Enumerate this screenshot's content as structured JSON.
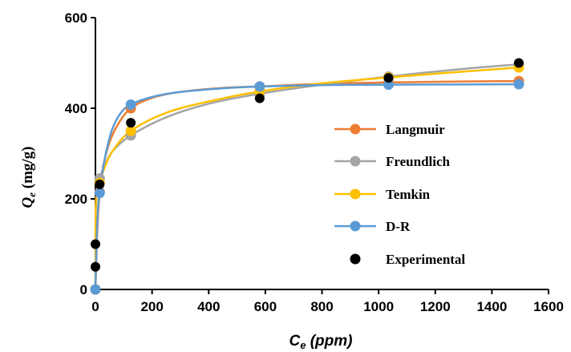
{
  "chart_data": {
    "type": "line",
    "title": "",
    "xlabel": {
      "main": "C",
      "sub": "e",
      "rest": " (ppm)"
    },
    "ylabel": {
      "main": "Q",
      "sub": "e",
      "rest": " (mg/g)"
    },
    "xlim": [
      0,
      1600
    ],
    "ylim": [
      0,
      600
    ],
    "xticks": [
      0,
      200,
      400,
      600,
      800,
      1000,
      1200,
      1400,
      1600
    ],
    "yticks": [
      0,
      200,
      400,
      600
    ],
    "grid": false,
    "legend_position": "right",
    "series": [
      {
        "name": "Langmuir",
        "color": "#ED7D31",
        "style": "line-marker",
        "points": [
          [
            0,
            0
          ],
          [
            15,
            215
          ],
          [
            125,
            400
          ],
          [
            580,
            448
          ],
          [
            1035,
            457
          ],
          [
            1495,
            460
          ]
        ],
        "curve": [
          [
            0,
            0
          ],
          [
            2,
            40
          ],
          [
            5,
            100
          ],
          [
            8,
            150
          ],
          [
            12,
            190
          ],
          [
            20,
            240
          ],
          [
            30,
            280
          ],
          [
            50,
            325
          ],
          [
            80,
            365
          ],
          [
            125,
            400
          ],
          [
            200,
            423
          ],
          [
            300,
            436
          ],
          [
            450,
            445
          ],
          [
            580,
            448
          ],
          [
            800,
            454
          ],
          [
            1035,
            457
          ],
          [
            1300,
            459
          ],
          [
            1495,
            460
          ]
        ]
      },
      {
        "name": "Freundlich",
        "color": "#A5A5A5",
        "style": "line-marker",
        "points": [
          [
            0,
            0
          ],
          [
            15,
            245
          ],
          [
            125,
            340
          ],
          [
            580,
            432
          ],
          [
            1035,
            470
          ],
          [
            1495,
            497
          ]
        ],
        "curve": [
          [
            0,
            0
          ],
          [
            0.5,
            140
          ],
          [
            1,
            160
          ],
          [
            3,
            195
          ],
          [
            8,
            230
          ],
          [
            15,
            245
          ],
          [
            30,
            270
          ],
          [
            60,
            305
          ],
          [
            125,
            340
          ],
          [
            250,
            380
          ],
          [
            400,
            410
          ],
          [
            580,
            432
          ],
          [
            800,
            452
          ],
          [
            1035,
            470
          ],
          [
            1300,
            487
          ],
          [
            1495,
            497
          ]
        ]
      },
      {
        "name": "Temkin",
        "color": "#FFC000",
        "style": "line-marker",
        "points": [
          [
            0,
            0
          ],
          [
            15,
            235
          ],
          [
            125,
            350
          ],
          [
            580,
            437
          ],
          [
            1035,
            468
          ],
          [
            1495,
            490
          ]
        ],
        "curve": [
          [
            0,
            0
          ],
          [
            0.5,
            160
          ],
          [
            1,
            180
          ],
          [
            3,
            205
          ],
          [
            8,
            225
          ],
          [
            15,
            235
          ],
          [
            30,
            265
          ],
          [
            60,
            305
          ],
          [
            125,
            350
          ],
          [
            250,
            390
          ],
          [
            400,
            415
          ],
          [
            580,
            437
          ],
          [
            800,
            455
          ],
          [
            1035,
            468
          ],
          [
            1300,
            481
          ],
          [
            1495,
            490
          ]
        ]
      },
      {
        "name": "D-R",
        "color": "#5B9BD5",
        "style": "line-marker",
        "points": [
          [
            0,
            0
          ],
          [
            15,
            213
          ],
          [
            125,
            408
          ],
          [
            580,
            448
          ],
          [
            1035,
            452
          ],
          [
            1495,
            453
          ]
        ],
        "curve": [
          [
            0,
            0
          ],
          [
            3,
            80
          ],
          [
            6,
            140
          ],
          [
            10,
            185
          ],
          [
            15,
            213
          ],
          [
            25,
            260
          ],
          [
            40,
            310
          ],
          [
            60,
            355
          ],
          [
            90,
            390
          ],
          [
            125,
            408
          ],
          [
            200,
            425
          ],
          [
            300,
            436
          ],
          [
            450,
            444
          ],
          [
            580,
            448
          ],
          [
            800,
            451
          ],
          [
            1035,
            452
          ],
          [
            1495,
            453
          ]
        ]
      },
      {
        "name": "Experimental",
        "color": "#000000",
        "style": "marker",
        "points": [
          [
            0,
            50
          ],
          [
            0,
            100
          ],
          [
            15,
            232
          ],
          [
            125,
            368
          ],
          [
            580,
            422
          ],
          [
            1035,
            467
          ],
          [
            1495,
            500
          ]
        ]
      }
    ]
  }
}
